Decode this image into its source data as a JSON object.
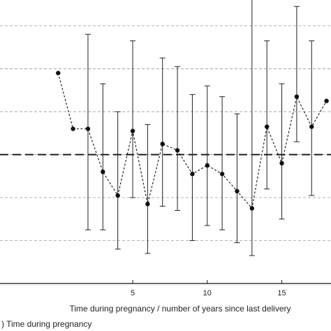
{
  "chart_data": {
    "type": "line",
    "xlabel": "Time during pregnancy / number of years since last delivery",
    "ylabel": "",
    "title": "",
    "caption": ") Time during pregnancy",
    "xlim": [
      -3.9,
      18.3
    ],
    "ylim": [
      -3.0,
      3.6
    ],
    "x_ticks": [
      5,
      10,
      15
    ],
    "y_gridlines": [
      -3,
      -2,
      -1,
      0,
      1,
      2,
      3
    ],
    "reference_line": 0,
    "x": [
      0,
      1,
      2,
      3,
      4,
      5,
      6,
      7,
      8,
      9,
      10,
      11,
      12,
      13,
      14,
      15,
      16,
      17,
      18
    ],
    "y": [
      1.9,
      0.6,
      0.6,
      -0.4,
      -0.95,
      0.55,
      -1.15,
      0.25,
      0.1,
      -0.45,
      -0.25,
      -0.45,
      -0.85,
      -1.25,
      0.65,
      -0.2,
      1.35,
      0.65,
      1.25
    ],
    "y_lower": [
      null,
      null,
      -1.75,
      -1.75,
      -2.2,
      -1.0,
      -2.3,
      -1.2,
      -1.3,
      -2.0,
      -1.65,
      -1.75,
      -2.05,
      -2.35,
      -0.8,
      -1.5,
      0.3,
      -0.95,
      null
    ],
    "y_upper": [
      null,
      null,
      2.8,
      1.65,
      1.0,
      2.65,
      0.7,
      2.25,
      2.05,
      1.4,
      1.6,
      1.35,
      0.95,
      null,
      2.65,
      1.65,
      3.45,
      2.65,
      null
    ]
  }
}
